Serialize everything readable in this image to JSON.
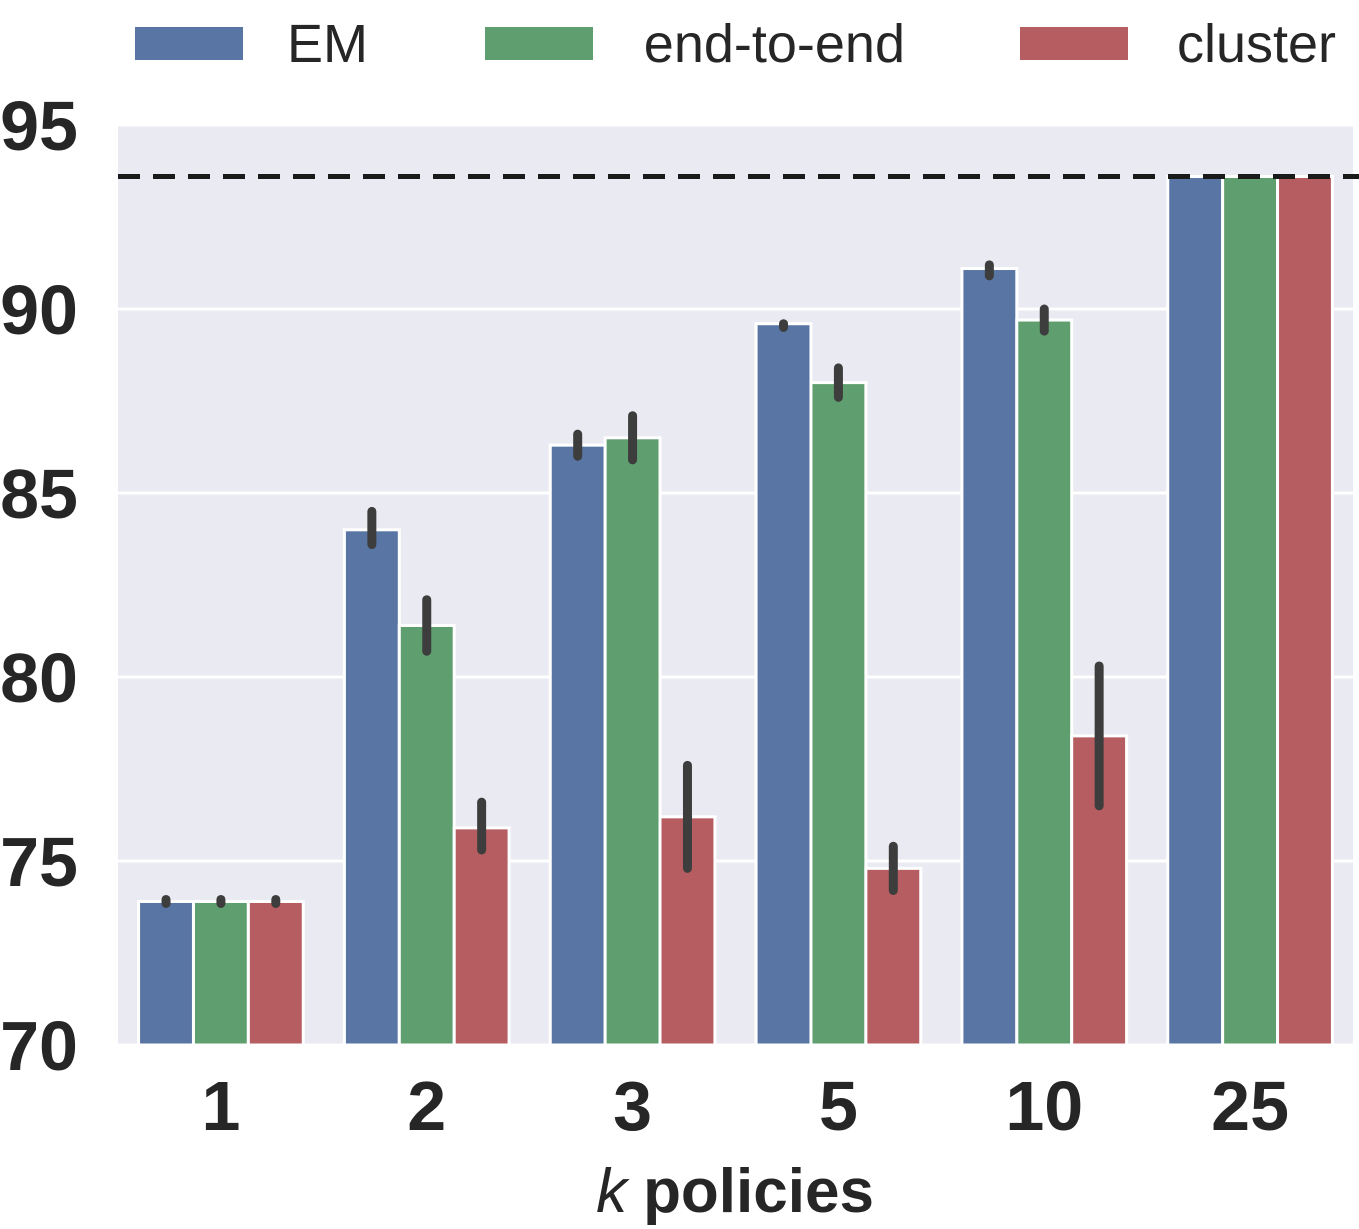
{
  "chart_data": {
    "type": "bar",
    "title": "",
    "xlabel_italic": "k",
    "xlabel_rest": "policies",
    "ylabel": "",
    "categories": [
      "1",
      "2",
      "3",
      "5",
      "10",
      "25"
    ],
    "ylim": [
      70,
      95
    ],
    "yticks": [
      70,
      75,
      80,
      85,
      90,
      95
    ],
    "grid": true,
    "legend_position": "top",
    "reference_line": 93.6,
    "series": [
      {
        "name": "EM",
        "color": "#5975a4",
        "values": [
          73.9,
          84.0,
          86.3,
          89.6,
          91.1,
          93.6
        ],
        "err_low": [
          73.9,
          83.6,
          86.0,
          89.5,
          90.9,
          null
        ],
        "err_high": [
          73.9,
          84.5,
          86.6,
          89.6,
          91.2,
          null
        ]
      },
      {
        "name": "end-to-end",
        "color": "#5f9e6e",
        "values": [
          73.9,
          81.4,
          86.5,
          88.0,
          89.7,
          93.6
        ],
        "err_low": [
          73.9,
          80.7,
          85.9,
          87.6,
          89.4,
          null
        ],
        "err_high": [
          73.9,
          82.1,
          87.1,
          88.4,
          90.0,
          null
        ]
      },
      {
        "name": "cluster",
        "color": "#b55d60",
        "values": [
          73.9,
          75.9,
          76.2,
          74.8,
          78.4,
          93.6
        ],
        "err_low": [
          73.9,
          75.3,
          74.8,
          74.2,
          76.5,
          null
        ],
        "err_high": [
          73.9,
          76.6,
          77.6,
          75.4,
          80.3,
          null
        ]
      }
    ]
  }
}
